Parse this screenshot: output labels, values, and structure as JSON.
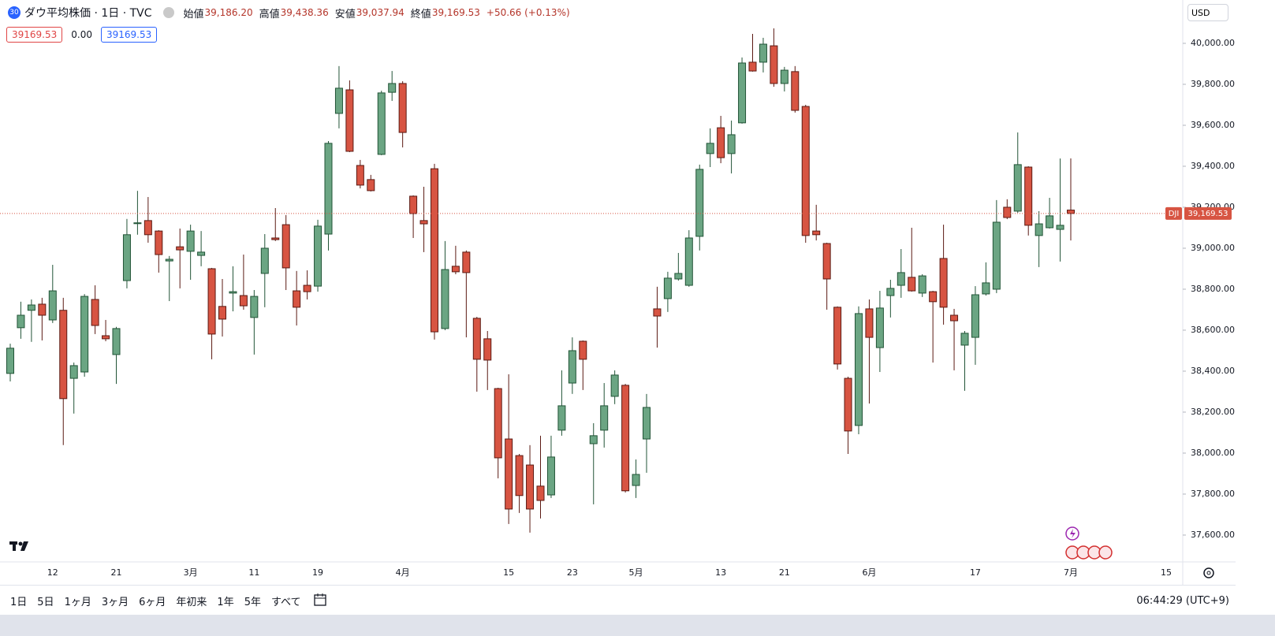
{
  "header": {
    "badge": "30",
    "title": "ダウ平均株価 · 1日 · TVC",
    "open_label": "始値",
    "open": "39,186.20",
    "high_label": "高値",
    "high": "39,438.36",
    "low_label": "安値",
    "low": "39,037.94",
    "close_label": "終値",
    "close": "39,169.53",
    "change": "+50.66 (+0.13%)",
    "legend": [
      "39169.53",
      "0.00",
      "39169.53"
    ],
    "currency": "USD"
  },
  "chart_data": {
    "type": "candlestick",
    "categories": [
      null,
      null,
      null,
      null,
      "12",
      null,
      null,
      null,
      null,
      null,
      "21",
      null,
      null,
      null,
      null,
      null,
      null,
      "3月",
      null,
      null,
      null,
      null,
      null,
      "11",
      null,
      null,
      null,
      null,
      null,
      "19",
      null,
      null,
      null,
      null,
      null,
      null,
      null,
      "4月",
      null,
      null,
      null,
      null,
      null,
      null,
      null,
      null,
      null,
      "15",
      null,
      null,
      null,
      null,
      null,
      "23",
      null,
      null,
      null,
      null,
      null,
      "5月",
      null,
      null,
      null,
      null,
      null,
      null,
      null,
      "13",
      null,
      null,
      null,
      null,
      null,
      "21",
      null,
      null,
      null,
      null,
      null,
      null,
      null,
      "6月",
      null,
      null,
      null,
      null,
      null,
      null,
      null,
      null,
      null,
      "17",
      null,
      null,
      null,
      null,
      null,
      null,
      null,
      null,
      "7月",
      null,
      null,
      null,
      null,
      null,
      null,
      null,
      null,
      "15"
    ],
    "open": [
      38389,
      38612,
      38697,
      38727,
      38650,
      38697,
      38365,
      38396,
      38750,
      38573,
      38481,
      38842,
      39120,
      39135,
      39084,
      38938,
      39007,
      38985,
      38965,
      38900,
      38716,
      38781,
      38769,
      38662,
      38877,
      39050,
      39115,
      38792,
      38819,
      38815,
      39069,
      39658,
      39773,
      39404,
      39335,
      39458,
      39761,
      39804,
      39254,
      39135,
      39388,
      38608,
      38912,
      38981,
      38658,
      38558,
      38315,
      38069,
      37988,
      37942,
      37839,
      37796,
      38112,
      38342,
      38546,
      38046,
      38112,
      38277,
      38331,
      37842,
      38069,
      38704,
      38754,
      38850,
      38819,
      39058,
      39462,
      39588,
      39462,
      39612,
      39908,
      39908,
      39988,
      39804,
      39862,
      39692,
      39084,
      39023,
      38712,
      38365,
      38135,
      38704,
      38515,
      38769,
      38819,
      38858,
      38781,
      38788,
      38950,
      38673,
      38527,
      38565,
      38777,
      38800,
      39200,
      39181,
      39396,
      39062,
      39100,
      39092,
      39186.2,
      null,
      null,
      null,
      null,
      null,
      null,
      null,
      null,
      null
    ],
    "high": [
      38534,
      38739,
      38750,
      38758,
      38919,
      38758,
      38442,
      38776,
      38819,
      38650,
      38616,
      39143,
      39280,
      39250,
      39088,
      38962,
      39096,
      39115,
      39084,
      38904,
      38850,
      38912,
      38969,
      38796,
      39069,
      39196,
      39162,
      38889,
      38892,
      39139,
      39523,
      39889,
      39819,
      39431,
      39358,
      39769,
      39865,
      39815,
      39258,
      39300,
      39412,
      39035,
      39012,
      38989,
      38665,
      38596,
      38319,
      38385,
      37996,
      38039,
      38085,
      38085,
      38404,
      38565,
      38550,
      38146,
      38342,
      38404,
      38338,
      37969,
      38289,
      38812,
      38885,
      38977,
      39088,
      39408,
      39585,
      39646,
      39623,
      39931,
      40046,
      40027,
      40073,
      39885,
      39889,
      39700,
      39212,
      39027,
      38716,
      38373,
      38716,
      38750,
      38792,
      38846,
      38996,
      39100,
      38873,
      38792,
      39115,
      38704,
      38596,
      38815,
      38931,
      39235,
      39239,
      39565,
      39400,
      39181,
      39246,
      39438,
      39438.36,
      null,
      null,
      null,
      null,
      null,
      null,
      null,
      null,
      null
    ],
    "low": [
      38350,
      38558,
      38543,
      38550,
      38635,
      38039,
      38193,
      38373,
      38581,
      38546,
      38338,
      38804,
      39066,
      39027,
      38881,
      38742,
      38804,
      38846,
      38912,
      38458,
      38569,
      38692,
      38700,
      38481,
      38712,
      39035,
      38796,
      38623,
      38750,
      38788,
      38989,
      39585,
      39469,
      39292,
      39277,
      39454,
      39719,
      39492,
      39050,
      38981,
      38554,
      38600,
      38873,
      38565,
      38300,
      38308,
      37877,
      37654,
      37708,
      37612,
      37681,
      37781,
      38085,
      38289,
      38308,
      37750,
      38027,
      38239,
      37808,
      37781,
      37904,
      38515,
      38689,
      38842,
      38812,
      38989,
      39396,
      39415,
      39365,
      39608,
      39862,
      39858,
      39788,
      39765,
      39662,
      39027,
      39038,
      38700,
      38408,
      37996,
      38092,
      38242,
      38396,
      38662,
      38758,
      38788,
      38762,
      38442,
      38627,
      38404,
      38304,
      38431,
      38769,
      38781,
      39142,
      39173,
      39062,
      38908,
      39096,
      38935,
      39037.94,
      null,
      null,
      null,
      null,
      null,
      null,
      null,
      null,
      null
    ],
    "close": [
      38512,
      38673,
      38723,
      38673,
      38792,
      38266,
      38427,
      38765,
      38623,
      38558,
      38608,
      39066,
      39124,
      39066,
      38969,
      38946,
      38992,
      39084,
      38981,
      38581,
      38654,
      38788,
      38719,
      38765,
      39000,
      39042,
      38904,
      38712,
      38788,
      39108,
      39512,
      39781,
      39473,
      39308,
      39281,
      39758,
      39804,
      39565,
      39169,
      39119,
      38592,
      38896,
      38885,
      38881,
      38458,
      38454,
      37977,
      37727,
      37793,
      37727,
      37769,
      37981,
      38231,
      38500,
      38458,
      38085,
      38231,
      38381,
      37816,
      37896,
      38223,
      38669,
      38854,
      38877,
      39050,
      39385,
      39512,
      39442,
      39554,
      39904,
      39865,
      39996,
      39804,
      39869,
      39673,
      39062,
      39066,
      38850,
      38435,
      38108,
      38681,
      38565,
      38708,
      38804,
      38881,
      38792,
      38865,
      38739,
      38712,
      38646,
      38585,
      38773,
      38831,
      39127,
      39150,
      39408,
      39112,
      39119,
      39158,
      39112,
      39169.53,
      null,
      null,
      null,
      null,
      null,
      null,
      null,
      null,
      null
    ],
    "up_color": "#6ba583",
    "down_color": "#d75442",
    "ylim": [
      37469,
      40211.5
    ],
    "yticks": [
      {
        "value": 37600,
        "label": "37,600.00"
      },
      {
        "value": 37800,
        "label": "37,800.00"
      },
      {
        "value": 38000,
        "label": "38,000.00"
      },
      {
        "value": 38200,
        "label": "38,200.00"
      },
      {
        "value": 38400,
        "label": "38,400.00"
      },
      {
        "value": 38600,
        "label": "38,600.00"
      },
      {
        "value": 38800,
        "label": "38,800.00"
      },
      {
        "value": 39000,
        "label": "39,000.00"
      },
      {
        "value": 39200,
        "label": "39,200.00"
      },
      {
        "value": 39400,
        "label": "39,400.00"
      },
      {
        "value": 39600,
        "label": "39,600.00"
      },
      {
        "value": 39800,
        "label": "39,800.00"
      },
      {
        "value": 40000,
        "label": "40,000.00"
      }
    ],
    "grid": false,
    "price_tag": {
      "symbol": "DJI",
      "label": "39,169.53"
    }
  },
  "toolbar": {
    "ranges": [
      "1日",
      "5日",
      "1ヶ月",
      "3ヶ月",
      "6ヶ月",
      "年初来",
      "1年",
      "5年",
      "すべて"
    ],
    "time": "06:44:29 (UTC+9)"
  }
}
